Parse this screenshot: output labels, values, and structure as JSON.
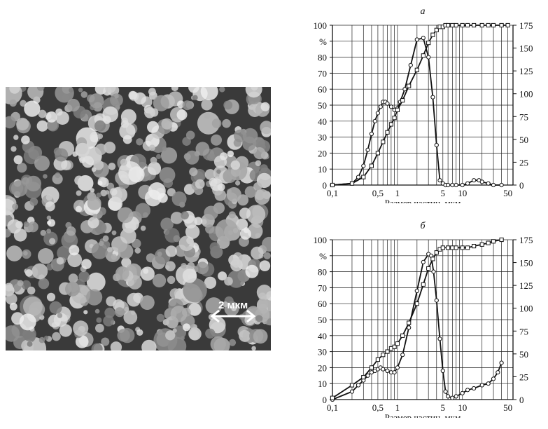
{
  "micrograph": {
    "scale_bar_label": "2 мкм",
    "colors": {
      "background": "#3a3a3a",
      "particle": "#d6d6d6",
      "scale_bar": "#ffffff"
    }
  },
  "colors": {
    "line": "#111111",
    "grid": "#222222",
    "marker_fill": "#ffffff"
  },
  "chart_data": [
    {
      "type": "line",
      "title": "а",
      "xlabel": "Размер частиц, мкм",
      "ylabel_left": "%",
      "x_scale": "log",
      "xlim": [
        0.1,
        60
      ],
      "x_ticks": [
        0.1,
        0.5,
        1,
        5,
        10,
        50
      ],
      "x_tick_labels": [
        "0,1",
        "0,5",
        "1",
        "5",
        "10",
        "50"
      ],
      "ylim": [
        0,
        100
      ],
      "y_ticks": [
        0,
        10,
        20,
        30,
        40,
        50,
        60,
        70,
        80,
        90,
        100
      ],
      "y_tick_labels": [
        "0",
        "10",
        "20",
        "30",
        "40",
        "50",
        "60",
        "70",
        "80",
        "90",
        "100"
      ],
      "y2lim": [
        0,
        175
      ],
      "y2_ticks": [
        0,
        25,
        50,
        75,
        100,
        125,
        150,
        175
      ],
      "y2_tick_labels": [
        "0",
        "25",
        "50",
        "75",
        "100",
        "125",
        "150",
        "175"
      ],
      "grid": true,
      "series": [
        {
          "kind": "frequency",
          "x": [
            0.1,
            0.2,
            0.25,
            0.3,
            0.35,
            0.4,
            0.45,
            0.5,
            0.55,
            0.6,
            0.65,
            0.7,
            0.8,
            0.9,
            1.0,
            1.1,
            1.3,
            1.6,
            2.0,
            2.5,
            3.0,
            3.5,
            4.0,
            4.5,
            5.0,
            5.5,
            6.0,
            7.0,
            8.0,
            10,
            12,
            15,
            18,
            20,
            25,
            30,
            40
          ],
          "y": [
            0,
            1,
            5,
            12,
            22,
            32,
            40,
            45,
            49,
            52,
            52,
            51,
            49,
            47,
            48,
            52,
            60,
            75,
            91,
            92,
            80,
            55,
            25,
            3,
            1,
            0,
            0,
            0,
            0,
            0,
            1,
            3,
            3,
            2,
            1,
            0,
            0
          ]
        },
        {
          "kind": "cumulative",
          "x": [
            0.1,
            0.2,
            0.3,
            0.4,
            0.5,
            0.6,
            0.7,
            0.8,
            0.9,
            1.0,
            1.2,
            1.5,
            2.0,
            2.5,
            3.0,
            3.5,
            4.0,
            4.5,
            5.0,
            5.5,
            6.0,
            7.0,
            8.0,
            10,
            12,
            15,
            20,
            25,
            30,
            40,
            50
          ],
          "y": [
            0,
            1,
            5,
            12,
            20,
            27,
            33,
            38,
            42,
            47,
            53,
            62,
            72,
            81,
            89,
            94,
            97,
            99,
            99,
            100,
            100,
            100,
            100,
            100,
            100,
            100,
            100,
            100,
            100,
            100,
            100
          ]
        }
      ]
    },
    {
      "type": "line",
      "title": "б",
      "xlabel": "Размер частиц, мкм",
      "ylabel_left": "%",
      "x_scale": "log",
      "xlim": [
        0.1,
        60
      ],
      "x_ticks": [
        0.1,
        0.5,
        1,
        5,
        10,
        50
      ],
      "x_tick_labels": [
        "0,1",
        "0,5",
        "1",
        "5",
        "10",
        "50"
      ],
      "ylim": [
        0,
        100
      ],
      "y_ticks": [
        0,
        10,
        20,
        30,
        40,
        50,
        60,
        70,
        80,
        90,
        100
      ],
      "y_tick_labels": [
        "0",
        "10",
        "20",
        "30",
        "40",
        "50",
        "60",
        "70",
        "80",
        "90",
        "100"
      ],
      "y2lim": [
        0,
        175
      ],
      "y2_ticks": [
        0,
        25,
        50,
        75,
        100,
        125,
        150,
        175
      ],
      "y2_tick_labels": [
        "0",
        "25",
        "50",
        "75",
        "100",
        "125",
        "150",
        "175"
      ],
      "grid": true,
      "series": [
        {
          "kind": "frequency",
          "x": [
            0.1,
            0.2,
            0.25,
            0.3,
            0.35,
            0.4,
            0.45,
            0.5,
            0.55,
            0.6,
            0.7,
            0.8,
            0.9,
            1.0,
            1.2,
            1.5,
            2.0,
            2.5,
            3.0,
            3.3,
            3.6,
            4.0,
            4.5,
            5.0,
            5.5,
            6.0,
            7.0,
            8.0,
            10,
            12,
            15,
            20,
            25,
            30,
            35,
            40
          ],
          "y": [
            0,
            5,
            9,
            12,
            15,
            17,
            18,
            19,
            20,
            19,
            18,
            17,
            17,
            20,
            28,
            45,
            68,
            86,
            91,
            90,
            80,
            62,
            38,
            18,
            5,
            2,
            1,
            2,
            4,
            6,
            7,
            9,
            10,
            13,
            17,
            23
          ]
        },
        {
          "kind": "cumulative",
          "x": [
            0.1,
            0.2,
            0.3,
            0.4,
            0.5,
            0.6,
            0.7,
            0.8,
            0.9,
            1.0,
            1.2,
            1.5,
            2.0,
            2.5,
            3.0,
            3.5,
            4.0,
            4.5,
            5.0,
            6.0,
            7.0,
            8.0,
            10,
            12,
            15,
            20,
            25,
            30,
            40
          ],
          "y": [
            1,
            9,
            14,
            20,
            25,
            28,
            30,
            32,
            33,
            35,
            40,
            48,
            60,
            72,
            82,
            88,
            92,
            94,
            95,
            95,
            95,
            95,
            95,
            95,
            96,
            97,
            98,
            99,
            100
          ]
        }
      ]
    }
  ]
}
